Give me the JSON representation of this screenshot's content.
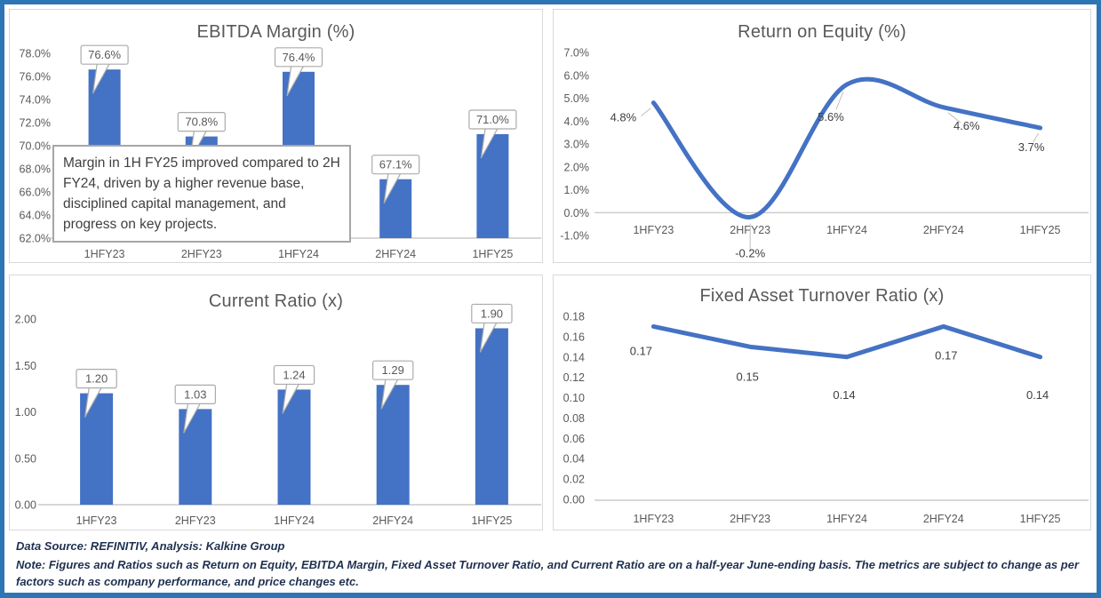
{
  "theme": {
    "accent": "#4472C4",
    "frame_border": "#2E75B6",
    "panel_border": "#D9D9D9",
    "axis_text": "#595959",
    "axis_line": "#BFBFBF",
    "title_text": "#595959",
    "callout_border": "#ABABAB",
    "callout_text": "#595959",
    "label_text": "#404040",
    "annotation_border": "#A6A6A6",
    "annotation_text": "#404040",
    "footer_text": "#1F3150"
  },
  "chart_data": [
    {
      "id": "ebitda-margin",
      "type": "bar",
      "title": "EBITDA Margin (%)",
      "categories": [
        "1HFY23",
        "2HFY23",
        "1HFY24",
        "2HFY24",
        "1HFY25"
      ],
      "values": [
        76.6,
        70.8,
        76.4,
        67.1,
        71.0
      ],
      "data_labels": [
        "76.6%",
        "70.8%",
        "76.4%",
        "67.1%",
        "71.0%"
      ],
      "ylim": [
        62,
        78
      ],
      "ytick_step": 2,
      "ytick_labels": [
        "78.0%",
        "76.0%",
        "74.0%",
        "72.0%",
        "70.0%",
        "68.0%",
        "66.0%",
        "64.0%",
        "62.0%"
      ],
      "grid": false,
      "legend": "none",
      "label_style": "callout",
      "annotation": "Margin in 1H FY25 improved compared to 2H FY24, driven by a higher revenue base, disciplined capital management, and progress on key projects."
    },
    {
      "id": "return-on-equity",
      "type": "line",
      "smooth": true,
      "title": "Return on Equity (%)",
      "categories": [
        "1HFY23",
        "2HFY23",
        "1HFY24",
        "2HFY24",
        "1HFY25"
      ],
      "values": [
        4.8,
        -0.2,
        5.6,
        4.6,
        3.7
      ],
      "data_labels": [
        "4.8%",
        "-0.2%",
        "5.6%",
        "4.6%",
        "3.7%"
      ],
      "ylim": [
        -1,
        7
      ],
      "ytick_step": 1,
      "ytick_labels": [
        "7.0%",
        "6.0%",
        "5.0%",
        "4.0%",
        "3.0%",
        "2.0%",
        "1.0%",
        "0.0%",
        "-1.0%"
      ],
      "grid": false,
      "legend": "none",
      "label_style": "plain"
    },
    {
      "id": "current-ratio",
      "type": "bar",
      "title": "Current Ratio (x)",
      "categories": [
        "1HFY23",
        "2HFY23",
        "1HFY24",
        "2HFY24",
        "1HFY25"
      ],
      "values": [
        1.2,
        1.03,
        1.24,
        1.29,
        1.9
      ],
      "data_labels": [
        "1.20",
        "1.03",
        "1.24",
        "1.29",
        "1.90"
      ],
      "ylim": [
        0,
        2
      ],
      "ytick_step": 0.5,
      "ytick_labels": [
        "2.00",
        "1.50",
        "1.00",
        "0.50",
        "0.00"
      ],
      "grid": false,
      "legend": "none",
      "label_style": "callout"
    },
    {
      "id": "fixed-asset-turnover-ratio",
      "type": "line",
      "smooth": false,
      "title": "Fixed Asset Turnover Ratio (x)",
      "categories": [
        "1HFY23",
        "2HFY23",
        "1HFY24",
        "2HFY24",
        "1HFY25"
      ],
      "values": [
        0.17,
        0.15,
        0.14,
        0.17,
        0.14
      ],
      "data_labels": [
        "0.17",
        "0.15",
        "0.14",
        "0.17",
        "0.14"
      ],
      "ylim": [
        0,
        0.18
      ],
      "ytick_step": 0.02,
      "ytick_labels": [
        "0.18",
        "0.16",
        "0.14",
        "0.12",
        "0.10",
        "0.08",
        "0.06",
        "0.04",
        "0.02",
        "0.00"
      ],
      "grid": false,
      "legend": "none",
      "label_style": "plain"
    }
  ],
  "footer": {
    "source": "Data Source: REFINITIV, Analysis: Kalkine Group",
    "note": "Note: Figures and Ratios such as Return on Equity, EBITDA Margin, Fixed Asset Turnover Ratio, and Current Ratio  are on a half-year June-ending basis. The metrics are subject to change as per factors such as company performance, and price changes etc."
  }
}
